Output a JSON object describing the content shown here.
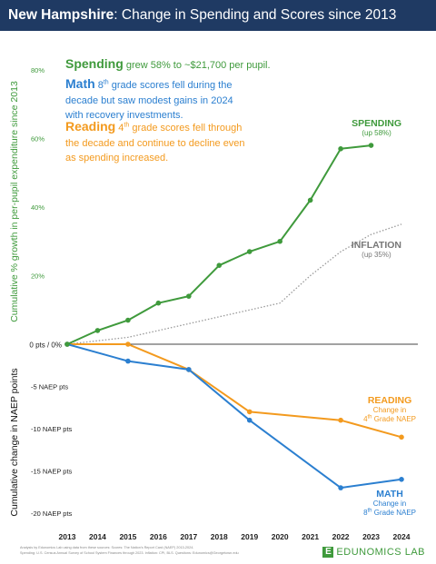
{
  "title": {
    "state": "New Hampshire",
    "rest": ": Change in Spending and Scores since 2013"
  },
  "annotations": {
    "spending": {
      "lead": "Spending",
      "text": " grew 58% to ~$21,700 per pupil."
    },
    "math": {
      "lead": "Math",
      "ordinal": "8",
      "sup": "th",
      "text": " grade scores fell during the decade but saw modest gains in 2024 with recovery investments."
    },
    "reading": {
      "lead": "Reading",
      "ordinal": "4",
      "sup": "th",
      "text": " grade scores fell through the decade and continue to decline even as spending increased."
    }
  },
  "series_labels": {
    "spending": {
      "name": "SPENDING",
      "note": "(up 58%)"
    },
    "inflation": {
      "name": "INFLATION",
      "note": "(up 35%)"
    },
    "reading": {
      "name": "READING",
      "note1": "Change in",
      "ordinal": "4",
      "sup": "th",
      "note2": " Grade NAEP"
    },
    "math": {
      "name": "MATH",
      "note1": "Change in",
      "ordinal": "8",
      "sup": "th",
      "note2": " Grade NAEP"
    }
  },
  "footer": {
    "line1": "Analysis by Edunomics Lab using data from these sources: Scores: The Nation's Report Card (NAEP) 2013-2024.",
    "line2": "Spending: U.S. Census Annual Survey of School System Finances through 2023. Inflation: CPI, BLS. Questions: Edunomics@Georgetown.edu"
  },
  "logo": {
    "mark": "E",
    "text": "EDUNOMICS LAB"
  },
  "colors": {
    "spending": "#3f9a3c",
    "math": "#2b7fd0",
    "reading": "#f39a1e",
    "inflation": "#9a9a9a",
    "title_bg": "#1f3a63"
  },
  "chart_data": {
    "type": "line",
    "title": "New Hampshire: Change in Spending and Scores since 2013",
    "x": [
      2013,
      2014,
      2015,
      2016,
      2017,
      2018,
      2019,
      2020,
      2021,
      2022,
      2023,
      2024
    ],
    "zero_label": "0 pts / 0%",
    "upper_axis": {
      "label": "Cumulative % growth in per-pupil expenditure since 2013",
      "range": [
        0,
        80
      ],
      "ticks": [
        20,
        40,
        60,
        80
      ],
      "tick_labels": [
        "20%",
        "40%",
        "60%",
        "80%"
      ]
    },
    "lower_axis": {
      "label": "Cumulative change in NAEP points",
      "range": [
        -20,
        0
      ],
      "ticks": [
        -5,
        -10,
        -15,
        -20
      ],
      "tick_labels": [
        "-5 NAEP pts",
        "-10 NAEP pts",
        "-15 NAEP pts",
        "-20 NAEP pts"
      ]
    },
    "series": [
      {
        "name": "SPENDING",
        "axis": "upper",
        "style": "solid",
        "points": [
          [
            2013,
            0
          ],
          [
            2014,
            4
          ],
          [
            2015,
            7
          ],
          [
            2016,
            12
          ],
          [
            2017,
            14
          ],
          [
            2018,
            23
          ],
          [
            2019,
            27
          ],
          [
            2020,
            30
          ],
          [
            2021,
            42
          ],
          [
            2022,
            57
          ],
          [
            2023,
            58
          ]
        ]
      },
      {
        "name": "INFLATION",
        "axis": "upper",
        "style": "dotted",
        "points": [
          [
            2013,
            0
          ],
          [
            2014,
            1
          ],
          [
            2015,
            2
          ],
          [
            2016,
            4
          ],
          [
            2017,
            6
          ],
          [
            2018,
            8
          ],
          [
            2019,
            10
          ],
          [
            2020,
            12
          ],
          [
            2021,
            20
          ],
          [
            2022,
            27
          ],
          [
            2023,
            32
          ],
          [
            2024,
            35
          ]
        ]
      },
      {
        "name": "READING",
        "axis": "lower",
        "style": "solid",
        "points": [
          [
            2013,
            0
          ],
          [
            2015,
            0
          ],
          [
            2017,
            -3
          ],
          [
            2019,
            -8
          ],
          [
            2022,
            -9
          ],
          [
            2024,
            -11
          ]
        ]
      },
      {
        "name": "MATH",
        "axis": "lower",
        "style": "solid",
        "points": [
          [
            2013,
            0
          ],
          [
            2015,
            -2
          ],
          [
            2017,
            -3
          ],
          [
            2019,
            -9
          ],
          [
            2022,
            -17
          ],
          [
            2024,
            -16
          ]
        ]
      }
    ]
  }
}
